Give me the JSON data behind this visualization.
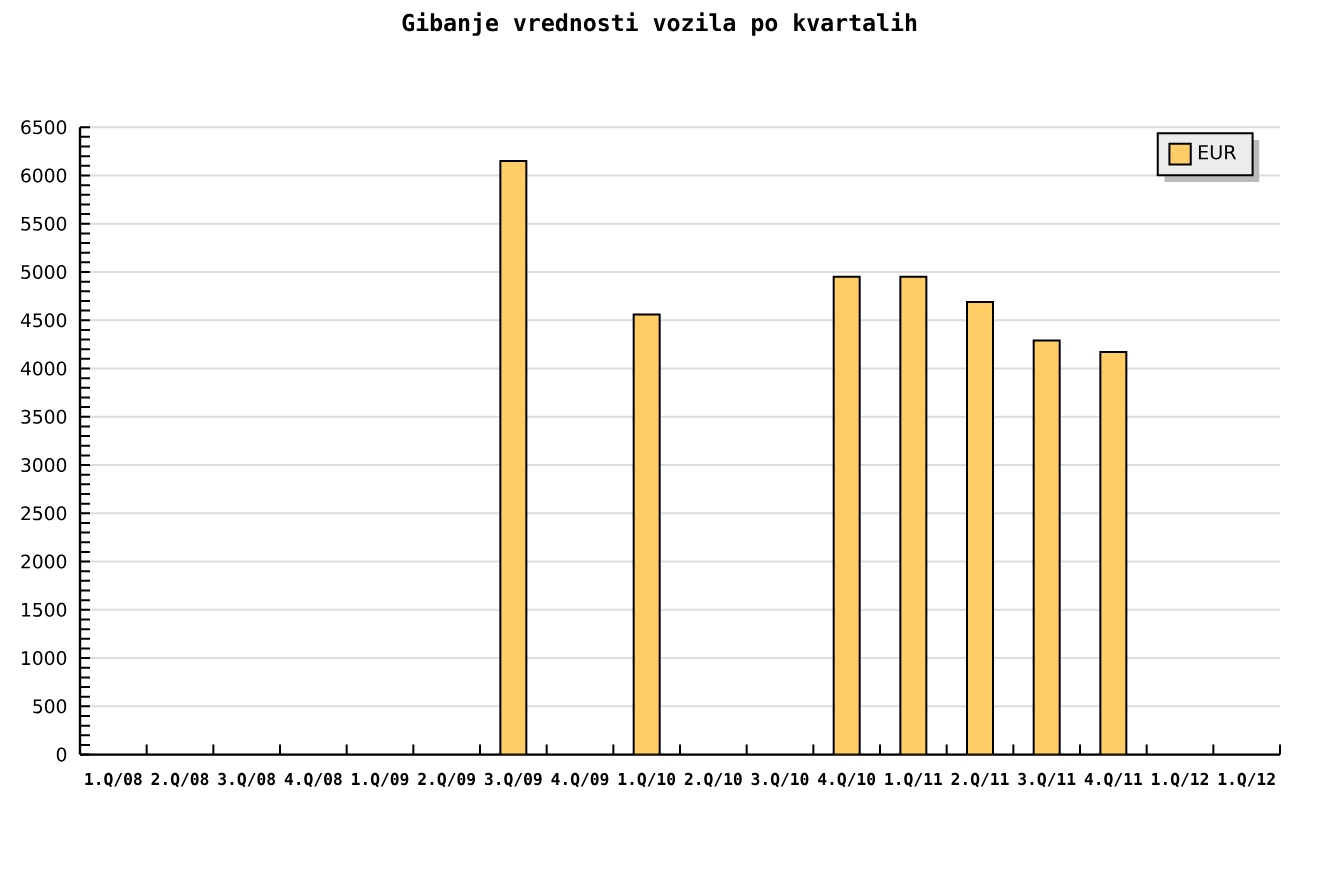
{
  "chart_data": {
    "type": "bar",
    "title": "Gibanje vrednosti vozila po kvartalih",
    "categories": [
      "1.Q/08",
      "2.Q/08",
      "3.Q/08",
      "4.Q/08",
      "1.Q/09",
      "2.Q/09",
      "3.Q/09",
      "4.Q/09",
      "1.Q/10",
      "2.Q/10",
      "3.Q/10",
      "4.Q/10",
      "1.Q/11",
      "2.Q/11",
      "3.Q/11",
      "4.Q/11",
      "1.Q/12",
      "1.Q/12"
    ],
    "series": [
      {
        "name": "EUR",
        "color": "#ffcc66",
        "values": [
          null,
          null,
          null,
          null,
          null,
          null,
          6150,
          null,
          4560,
          null,
          null,
          4950,
          4950,
          4690,
          4290,
          4170,
          null,
          null
        ]
      }
    ],
    "ylim": [
      0,
      6500
    ],
    "yticks": [
      0,
      500,
      1000,
      1500,
      2000,
      2500,
      3000,
      3500,
      4000,
      4500,
      5000,
      5500,
      6000,
      6500
    ],
    "grid": "y",
    "legend": "top right"
  }
}
